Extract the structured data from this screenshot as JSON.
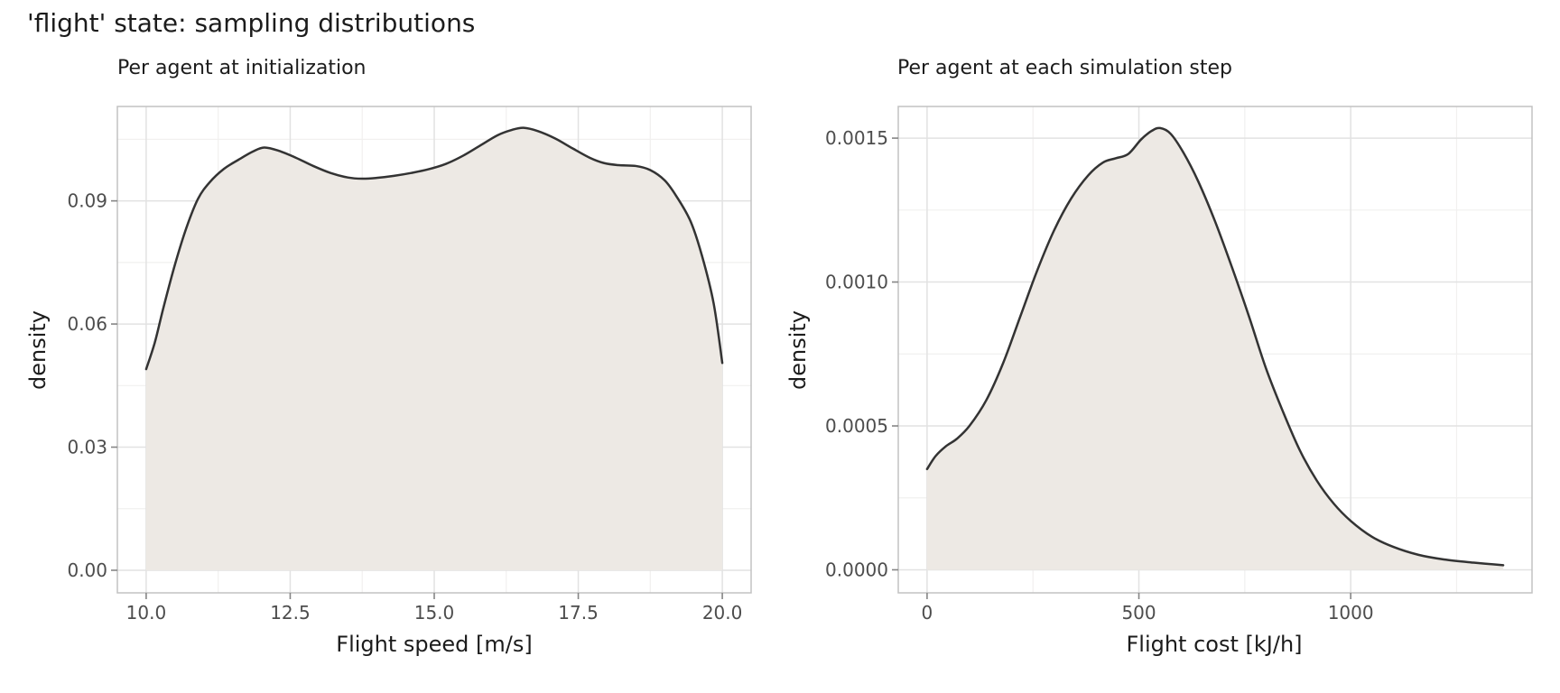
{
  "figure": {
    "title": "'flight' state: sampling distributions"
  },
  "colors": {
    "background": "#ffffff",
    "area_fill": "#ede9e4",
    "curve_line": "#333333",
    "grid_major": "#e2e2e2",
    "grid_minor": "#f1f0ef",
    "panel_border": "#c2c2c2",
    "tick_mark": "#858585",
    "tick_label": "#4d4d4d",
    "title_text": "#1c1c1c"
  },
  "chart_data": [
    {
      "type": "area",
      "title": "Per agent at initialization",
      "xlabel": "Flight speed [m/s]",
      "ylabel": "density",
      "legend": "none",
      "grid": "on",
      "xlim": [
        9.5,
        20.5
      ],
      "ylim": [
        -0.0055,
        0.113
      ],
      "x_ticks": {
        "values": [
          10,
          12.5,
          15,
          17.5,
          20
        ],
        "labels": [
          "10.0",
          "12.5",
          "15.0",
          "17.5",
          "20.0"
        ]
      },
      "y_ticks": {
        "values": [
          0,
          0.03,
          0.06,
          0.09
        ],
        "labels": [
          "0.00",
          "0.03",
          "0.06",
          "0.09"
        ]
      },
      "x_minor": [
        11.25,
        13.75,
        16.25,
        18.75
      ],
      "y_minor": [
        0.015,
        0.045,
        0.075,
        0.105
      ],
      "baseline": 0,
      "points": [
        [
          10.0,
          0.049
        ],
        [
          10.15,
          0.0555
        ],
        [
          10.3,
          0.064
        ],
        [
          10.5,
          0.0745
        ],
        [
          10.7,
          0.0835
        ],
        [
          10.9,
          0.0905
        ],
        [
          11.1,
          0.0945
        ],
        [
          11.35,
          0.0978
        ],
        [
          11.6,
          0.1
        ],
        [
          11.85,
          0.102
        ],
        [
          12.05,
          0.103
        ],
        [
          12.3,
          0.1022
        ],
        [
          12.6,
          0.1005
        ],
        [
          12.9,
          0.0985
        ],
        [
          13.2,
          0.0968
        ],
        [
          13.5,
          0.0957
        ],
        [
          13.75,
          0.0954
        ],
        [
          14.0,
          0.0956
        ],
        [
          14.3,
          0.0961
        ],
        [
          14.6,
          0.0968
        ],
        [
          14.9,
          0.0977
        ],
        [
          15.2,
          0.099
        ],
        [
          15.5,
          0.101
        ],
        [
          15.8,
          0.1035
        ],
        [
          16.1,
          0.106
        ],
        [
          16.35,
          0.1073
        ],
        [
          16.55,
          0.1078
        ],
        [
          16.8,
          0.107
        ],
        [
          17.1,
          0.1052
        ],
        [
          17.4,
          0.1028
        ],
        [
          17.7,
          0.1005
        ],
        [
          17.95,
          0.0992
        ],
        [
          18.2,
          0.0987
        ],
        [
          18.5,
          0.0985
        ],
        [
          18.75,
          0.0975
        ],
        [
          19.0,
          0.095
        ],
        [
          19.2,
          0.0912
        ],
        [
          19.45,
          0.085
        ],
        [
          19.65,
          0.0765
        ],
        [
          19.85,
          0.065
        ],
        [
          20.0,
          0.0505
        ]
      ]
    },
    {
      "type": "area",
      "title": "Per agent at each simulation step",
      "xlabel": "Flight cost [kJ/h]",
      "ylabel": "density",
      "legend": "none",
      "grid": "on",
      "xlim": [
        -68,
        1428
      ],
      "ylim": [
        -8e-05,
        0.00161
      ],
      "x_ticks": {
        "values": [
          0,
          500,
          1000
        ],
        "labels": [
          "0",
          "500",
          "1000"
        ]
      },
      "y_ticks": {
        "values": [
          0,
          0.0005,
          0.001,
          0.0015
        ],
        "labels": [
          "0.0000",
          "0.0005",
          "0.0010",
          "0.0015"
        ]
      },
      "x_minor": [
        250,
        750,
        1250
      ],
      "y_minor": [
        0.00025,
        0.00075,
        0.00125
      ],
      "baseline": 0,
      "points": [
        [
          0,
          0.00035
        ],
        [
          20,
          0.000395
        ],
        [
          45,
          0.00043
        ],
        [
          70,
          0.000455
        ],
        [
          100,
          0.0005
        ],
        [
          140,
          0.00059
        ],
        [
          180,
          0.00072
        ],
        [
          220,
          0.00088
        ],
        [
          260,
          0.00104
        ],
        [
          300,
          0.00118
        ],
        [
          340,
          0.00129
        ],
        [
          380,
          0.00137
        ],
        [
          415,
          0.001415
        ],
        [
          445,
          0.00143
        ],
        [
          475,
          0.001445
        ],
        [
          505,
          0.001495
        ],
        [
          530,
          0.001525
        ],
        [
          550,
          0.001535
        ],
        [
          575,
          0.001515
        ],
        [
          605,
          0.00145
        ],
        [
          640,
          0.00135
        ],
        [
          680,
          0.00121
        ],
        [
          720,
          0.00105
        ],
        [
          760,
          0.00088
        ],
        [
          800,
          0.0007
        ],
        [
          840,
          0.00055
        ],
        [
          880,
          0.000415
        ],
        [
          920,
          0.00031
        ],
        [
          960,
          0.00023
        ],
        [
          1000,
          0.00017
        ],
        [
          1050,
          0.000115
        ],
        [
          1100,
          8e-05
        ],
        [
          1160,
          5.2e-05
        ],
        [
          1220,
          3.6e-05
        ],
        [
          1290,
          2.5e-05
        ],
        [
          1360,
          1.6e-05
        ]
      ]
    }
  ]
}
